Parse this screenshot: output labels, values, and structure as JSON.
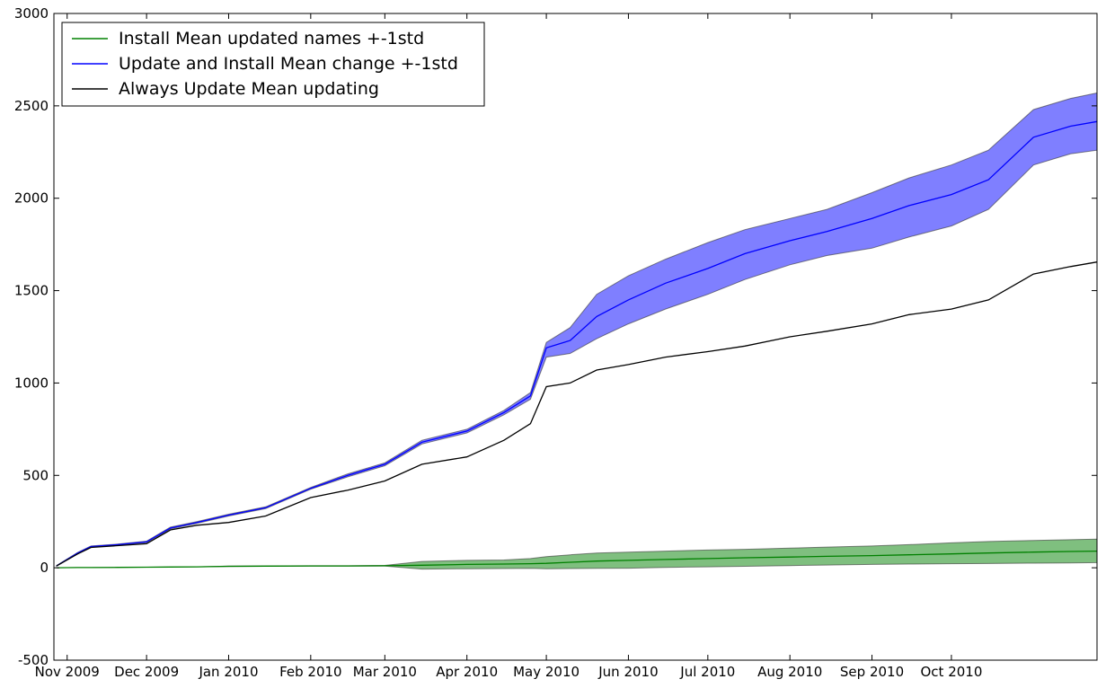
{
  "chart_data": {
    "type": "line",
    "title": "",
    "xlabel": "",
    "ylabel": "",
    "ylim": [
      -500,
      3000
    ],
    "xlim": [
      "2009-10-27",
      "2010-11-25"
    ],
    "x_ticks": [
      "Nov 2009",
      "Dec 2009",
      "Jan 2010",
      "Feb 2010",
      "Mar 2010",
      "Apr 2010",
      "May 2010",
      "Jun 2010",
      "Jul 2010",
      "Aug 2010",
      "Sep 2010",
      "Oct 2010"
    ],
    "x_tick_dates": [
      "2009-11-01",
      "2009-12-01",
      "2010-01-01",
      "2010-02-01",
      "2010-03-01",
      "2010-04-01",
      "2010-05-01",
      "2010-06-01",
      "2010-07-01",
      "2010-08-01",
      "2010-09-01",
      "2010-10-01"
    ],
    "y_ticks": [
      -500,
      0,
      500,
      1000,
      1500,
      2000,
      2500,
      3000
    ],
    "grid": false,
    "legend_position": "top-left",
    "x": [
      "2009-10-28",
      "2009-11-05",
      "2009-11-10",
      "2009-11-20",
      "2009-12-01",
      "2009-12-10",
      "2009-12-20",
      "2010-01-01",
      "2010-01-15",
      "2010-02-01",
      "2010-02-15",
      "2010-03-01",
      "2010-03-15",
      "2010-04-01",
      "2010-04-15",
      "2010-04-25",
      "2010-05-01",
      "2010-05-10",
      "2010-05-20",
      "2010-06-01",
      "2010-06-15",
      "2010-07-01",
      "2010-07-15",
      "2010-08-01",
      "2010-08-15",
      "2010-09-01",
      "2010-09-15",
      "2010-10-01",
      "2010-10-15",
      "2010-11-01",
      "2010-11-15",
      "2010-11-25"
    ],
    "series": [
      {
        "name": "Install Mean updated names +-1std",
        "color": "#008000",
        "band_color": "#008000",
        "values": [
          0,
          1,
          1,
          2,
          3,
          4,
          5,
          8,
          9,
          10,
          10,
          11,
          14,
          18,
          20,
          22,
          24,
          30,
          36,
          40,
          45,
          50,
          54,
          58,
          62,
          66,
          70,
          75,
          80,
          85,
          88,
          90
        ],
        "lower": [
          0,
          1,
          1,
          2,
          3,
          4,
          5,
          7,
          8,
          9,
          9,
          9,
          -7,
          -5,
          -4,
          -3,
          -5,
          -4,
          -3,
          -2,
          2,
          5,
          8,
          12,
          15,
          18,
          20,
          22,
          23,
          25,
          26,
          28
        ],
        "upper": [
          0,
          1,
          1,
          2,
          3,
          4,
          5,
          9,
          10,
          11,
          11,
          13,
          34,
          40,
          42,
          50,
          60,
          70,
          80,
          85,
          90,
          96,
          100,
          106,
          112,
          118,
          125,
          135,
          142,
          148,
          152,
          155
        ]
      },
      {
        "name": "Update and Install Mean change +-1std",
        "color": "#0000ff",
        "band_color": "#0000ff",
        "values": [
          10,
          80,
          115,
          125,
          140,
          215,
          245,
          285,
          325,
          430,
          500,
          560,
          680,
          740,
          840,
          930,
          1190,
          1230,
          1360,
          1450,
          1540,
          1620,
          1700,
          1770,
          1820,
          1890,
          1960,
          2020,
          2100,
          2330,
          2390,
          2415
        ],
        "lower": [
          8,
          77,
          112,
          122,
          136,
          210,
          240,
          280,
          320,
          425,
          492,
          552,
          670,
          730,
          828,
          912,
          1140,
          1160,
          1240,
          1320,
          1400,
          1480,
          1560,
          1640,
          1690,
          1730,
          1790,
          1850,
          1940,
          2180,
          2240,
          2260
        ],
        "upper": [
          12,
          83,
          118,
          128,
          144,
          220,
          250,
          290,
          330,
          435,
          508,
          568,
          690,
          750,
          852,
          948,
          1220,
          1300,
          1480,
          1580,
          1670,
          1760,
          1830,
          1890,
          1940,
          2030,
          2110,
          2180,
          2260,
          2480,
          2540,
          2570
        ]
      },
      {
        "name": "Always Update Mean updating",
        "color": "#000000",
        "values": [
          10,
          75,
          110,
          120,
          130,
          205,
          230,
          245,
          280,
          380,
          420,
          470,
          560,
          600,
          690,
          780,
          980,
          1000,
          1070,
          1100,
          1140,
          1170,
          1200,
          1250,
          1280,
          1320,
          1370,
          1400,
          1450,
          1590,
          1630,
          1655
        ]
      }
    ]
  }
}
